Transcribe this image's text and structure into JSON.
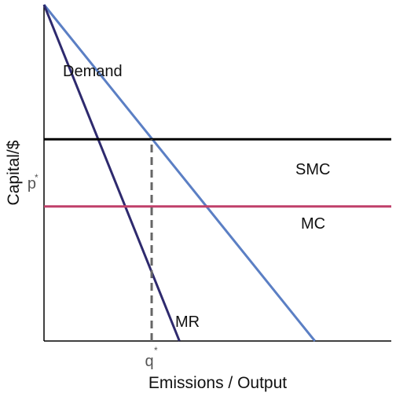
{
  "chart_data": {
    "type": "line",
    "title": "",
    "xlabel": "Emissions / Output",
    "ylabel": "Capital/$",
    "xlim": [
      0,
      10
    ],
    "ylim": [
      0,
      10
    ],
    "grid": false,
    "ticks": {
      "x": {
        "label": "q",
        "superscript": "*",
        "value": 3.1
      },
      "y": {
        "label": "p",
        "superscript": "*",
        "value": 6
      }
    },
    "series": [
      {
        "name": "Demand",
        "kind": "curve",
        "color": "#5b7fc4",
        "x": [
          0,
          7.8
        ],
        "y": [
          10,
          0
        ]
      },
      {
        "name": "MR",
        "kind": "curve",
        "color": "#2e2a6e",
        "x": [
          0,
          3.9
        ],
        "y": [
          10,
          0
        ]
      },
      {
        "name": "SMC",
        "kind": "curve",
        "color": "#000000",
        "x": [
          0,
          10
        ],
        "y": [
          6,
          6
        ]
      },
      {
        "name": "MC",
        "kind": "curve",
        "color": "#c0406a",
        "x": [
          0,
          10
        ],
        "y": [
          4,
          4
        ]
      },
      {
        "name": "",
        "kind": "guide",
        "color": "#666666",
        "x": [
          3.1,
          3.1
        ],
        "y": [
          0,
          6
        ]
      }
    ]
  }
}
